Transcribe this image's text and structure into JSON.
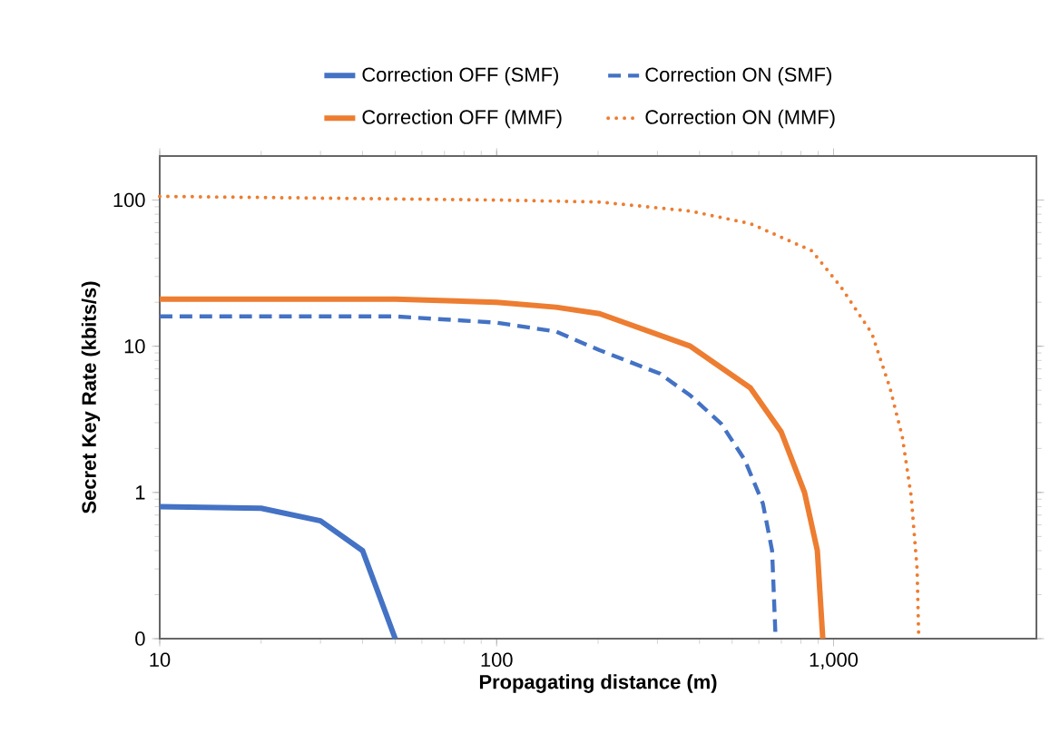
{
  "chart_data": {
    "type": "line",
    "xlabel": "Propagating distance (m)",
    "ylabel": "Secret Key Rate (kbits/s)",
    "log": "xy",
    "xlim": [
      10,
      4000
    ],
    "xticks": [
      10,
      100,
      {
        "value": 1000,
        "label": "1,000"
      }
    ],
    "ylim": [
      0.1,
      200
    ],
    "yticks": [
      {
        "value": 0.1,
        "label": "0"
      },
      1,
      10,
      100
    ],
    "legend": "top",
    "grid": false,
    "marker": "none",
    "series": [
      {
        "name": "Correction OFF (SMF)",
        "color": "#4472c4",
        "line_style": "solid",
        "x": [
          10,
          20,
          30,
          40,
          50
        ],
        "values": [
          0.8,
          0.78,
          0.64,
          0.4,
          0.1
        ]
      },
      {
        "name": "Correction ON (SMF)",
        "color": "#4472c4",
        "line_style": "dashed",
        "x": [
          10,
          50,
          100,
          150,
          202,
          305,
          376,
          464,
          545,
          617,
          657,
          673
        ],
        "values": [
          16,
          16,
          14.5,
          12.6,
          9.4,
          6.5,
          4.6,
          2.95,
          1.67,
          0.84,
          0.4,
          0.1
        ]
      },
      {
        "name": "Correction OFF (MMF)",
        "color": "#ed7d31",
        "line_style": "solid",
        "x": [
          10,
          50,
          100,
          150,
          202,
          376,
          566,
          699,
          820,
          895,
          929
        ],
        "values": [
          21,
          21,
          20,
          18.5,
          16.7,
          10,
          5.2,
          2.6,
          1.0,
          0.4,
          0.1
        ]
      },
      {
        "name": "Correction ON (MMF)",
        "color": "#ed7d31",
        "line_style": "dotted",
        "x": [
          10,
          100,
          202,
          376,
          566,
          862,
          1050,
          1300,
          1470,
          1600,
          1700,
          1770,
          1790
        ],
        "values": [
          106,
          100,
          97,
          84,
          69,
          45,
          25.6,
          12.2,
          5.2,
          2.4,
          0.94,
          0.3,
          0.1
        ]
      }
    ]
  }
}
